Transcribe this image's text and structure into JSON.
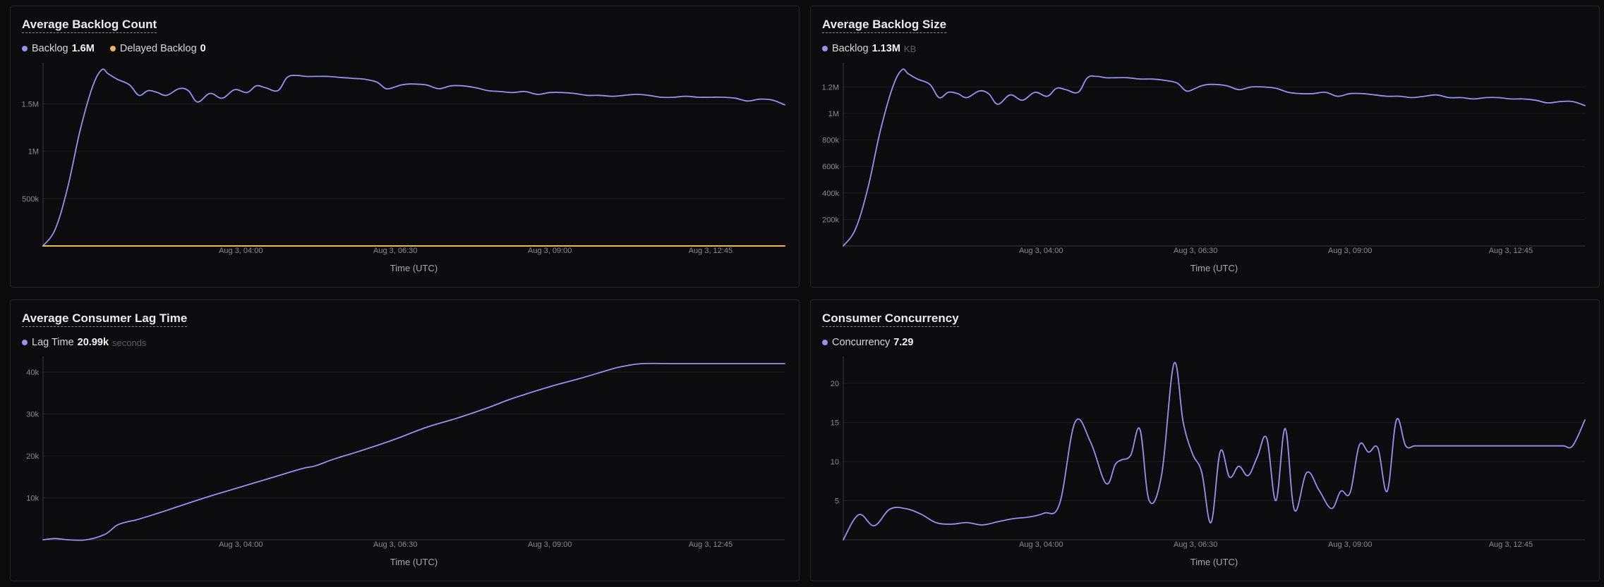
{
  "colors": {
    "primary": "#9d8ff0",
    "secondary": "#f5b35a",
    "grid": "#1d1d22",
    "axis": "#3a3a40"
  },
  "panels": [
    {
      "title": "Average Backlog Count",
      "legend": [
        {
          "name": "Backlog",
          "value": "1.6M",
          "unit": "",
          "color": "#9d8ff0"
        },
        {
          "name": "Delayed Backlog",
          "value": "0",
          "unit": "",
          "color": "#f5b35a"
        }
      ]
    },
    {
      "title": "Average Backlog Size",
      "legend": [
        {
          "name": "Backlog",
          "value": "1.13M",
          "unit": "KB",
          "color": "#9d8ff0"
        }
      ]
    },
    {
      "title": "Average Consumer Lag Time",
      "legend": [
        {
          "name": "Lag Time",
          "value": "20.99k",
          "unit": "seconds",
          "color": "#9d8ff0"
        }
      ]
    },
    {
      "title": "Consumer Concurrency",
      "legend": [
        {
          "name": "Concurrency",
          "value": "7.29",
          "unit": "",
          "color": "#9d8ff0"
        }
      ]
    }
  ],
  "chart_data": [
    {
      "type": "line",
      "title": "Average Backlog Count",
      "xlabel": "Time (UTC)",
      "x_ticks": [
        "Aug 3, 04:00",
        "Aug 3, 06:30",
        "Aug 3, 09:00",
        "Aug 3, 12:45"
      ],
      "x_tick_hours": [
        4.0,
        6.5,
        9.0,
        11.6
      ],
      "x_range_hours": [
        0.8,
        12.8
      ],
      "y_ticks": [
        500000,
        1000000,
        1500000
      ],
      "y_tick_labels": [
        "500k",
        "1M",
        "1.5M"
      ],
      "ylim": [
        0,
        1860000
      ],
      "series": [
        {
          "name": "Backlog",
          "color": "#9d8ff0",
          "x": [
            0.8,
            1.0,
            1.2,
            1.4,
            1.6,
            1.75,
            1.85,
            2.0,
            2.2,
            2.35,
            2.5,
            2.65,
            2.8,
            3.0,
            3.15,
            3.3,
            3.5,
            3.7,
            3.9,
            4.1,
            4.25,
            4.4,
            4.6,
            4.75,
            4.9,
            5.05,
            5.2,
            5.4,
            5.6,
            5.8,
            6.0,
            6.2,
            6.35,
            6.5,
            6.6,
            6.75,
            7.0,
            7.2,
            7.4,
            7.6,
            7.8,
            8.0,
            8.2,
            8.4,
            8.6,
            8.8,
            9.0,
            9.2,
            9.4,
            9.6,
            9.8,
            10.0,
            10.2,
            10.4,
            10.6,
            10.8,
            11.0,
            11.2,
            11.4,
            11.6,
            11.8,
            12.0,
            12.2,
            12.4,
            12.6,
            12.8
          ],
          "values": [
            0,
            180000,
            620000,
            1220000,
            1680000,
            1860000,
            1820000,
            1760000,
            1700000,
            1590000,
            1640000,
            1620000,
            1590000,
            1660000,
            1640000,
            1520000,
            1610000,
            1560000,
            1650000,
            1620000,
            1690000,
            1670000,
            1640000,
            1780000,
            1800000,
            1790000,
            1790000,
            1790000,
            1780000,
            1770000,
            1760000,
            1730000,
            1660000,
            1680000,
            1700000,
            1710000,
            1700000,
            1660000,
            1690000,
            1690000,
            1670000,
            1640000,
            1630000,
            1620000,
            1630000,
            1600000,
            1620000,
            1620000,
            1610000,
            1590000,
            1590000,
            1580000,
            1590000,
            1600000,
            1590000,
            1570000,
            1570000,
            1580000,
            1570000,
            1570000,
            1570000,
            1560000,
            1530000,
            1550000,
            1540000,
            1490000
          ]
        },
        {
          "name": "Delayed Backlog",
          "color": "#f5b35a",
          "x": [
            0.8,
            12.8
          ],
          "values": [
            0,
            0
          ]
        }
      ]
    },
    {
      "type": "line",
      "title": "Average Backlog Size",
      "xlabel": "Time (UTC)",
      "x_ticks": [
        "Aug 3, 04:00",
        "Aug 3, 06:30",
        "Aug 3, 09:00",
        "Aug 3, 12:45"
      ],
      "x_tick_hours": [
        4.0,
        6.5,
        9.0,
        11.6
      ],
      "x_range_hours": [
        0.8,
        12.8
      ],
      "y_ticks": [
        200000,
        400000,
        600000,
        800000,
        1000000,
        1200000
      ],
      "y_tick_labels": [
        "200k",
        "400k",
        "600k",
        "800k",
        "1M",
        "1.2M"
      ],
      "ylim": [
        0,
        1330000
      ],
      "series": [
        {
          "name": "Backlog",
          "unit": "KB",
          "color": "#9d8ff0",
          "x": [
            0.8,
            1.0,
            1.2,
            1.4,
            1.6,
            1.75,
            1.85,
            2.0,
            2.2,
            2.35,
            2.5,
            2.65,
            2.8,
            3.0,
            3.15,
            3.3,
            3.5,
            3.7,
            3.9,
            4.1,
            4.25,
            4.4,
            4.6,
            4.75,
            4.9,
            5.05,
            5.2,
            5.4,
            5.6,
            5.8,
            6.0,
            6.2,
            6.35,
            6.5,
            6.6,
            6.75,
            7.0,
            7.2,
            7.4,
            7.6,
            7.8,
            8.0,
            8.2,
            8.4,
            8.6,
            8.8,
            9.0,
            9.2,
            9.4,
            9.6,
            9.8,
            10.0,
            10.2,
            10.4,
            10.6,
            10.8,
            11.0,
            11.2,
            11.4,
            11.6,
            11.8,
            12.0,
            12.2,
            12.4,
            12.6,
            12.8
          ],
          "values": [
            0,
            130000,
            440000,
            870000,
            1200000,
            1330000,
            1300000,
            1260000,
            1220000,
            1120000,
            1160000,
            1150000,
            1120000,
            1170000,
            1150000,
            1070000,
            1140000,
            1100000,
            1160000,
            1130000,
            1190000,
            1180000,
            1160000,
            1270000,
            1280000,
            1270000,
            1270000,
            1270000,
            1260000,
            1260000,
            1250000,
            1230000,
            1170000,
            1190000,
            1210000,
            1220000,
            1210000,
            1180000,
            1200000,
            1200000,
            1190000,
            1160000,
            1150000,
            1150000,
            1160000,
            1130000,
            1150000,
            1150000,
            1140000,
            1130000,
            1130000,
            1120000,
            1130000,
            1140000,
            1120000,
            1120000,
            1110000,
            1120000,
            1120000,
            1110000,
            1110000,
            1100000,
            1080000,
            1090000,
            1090000,
            1060000
          ]
        }
      ]
    },
    {
      "type": "line",
      "title": "Average Consumer Lag Time",
      "xlabel": "Time (UTC)",
      "x_ticks": [
        "Aug 3, 04:00",
        "Aug 3, 06:30",
        "Aug 3, 09:00",
        "Aug 3, 12:45"
      ],
      "x_tick_hours": [
        4.0,
        6.5,
        9.0,
        11.6
      ],
      "x_range_hours": [
        0.8,
        12.8
      ],
      "y_ticks": [
        10000,
        20000,
        30000,
        40000
      ],
      "y_tick_labels": [
        "10k",
        "20k",
        "30k",
        "40k"
      ],
      "ylim": [
        0,
        42000
      ],
      "series": [
        {
          "name": "Lag Time",
          "unit": "seconds",
          "color": "#9d8ff0",
          "x": [
            0.8,
            1.0,
            1.2,
            1.5,
            1.8,
            2.0,
            2.2,
            2.3,
            2.5,
            2.8,
            3.0,
            3.5,
            4.0,
            4.5,
            5.0,
            5.2,
            5.5,
            6.0,
            6.5,
            7.0,
            7.5,
            8.0,
            8.3,
            8.5,
            9.0,
            9.5,
            10.0,
            10.2,
            10.5,
            11.0,
            11.5,
            12.0,
            12.4,
            12.8
          ],
          "values": [
            0,
            300,
            0,
            0,
            1300,
            3500,
            4400,
            4700,
            5600,
            7000,
            8000,
            10400,
            12600,
            14800,
            17000,
            17600,
            19200,
            21500,
            24000,
            26800,
            29000,
            31500,
            33200,
            34200,
            36500,
            38500,
            40700,
            41400,
            42000,
            42000,
            42000,
            42000,
            42000,
            42000
          ]
        }
      ]
    },
    {
      "type": "line",
      "title": "Consumer Concurrency",
      "xlabel": "Time (UTC)",
      "x_ticks": [
        "Aug 3, 04:00",
        "Aug 3, 06:30",
        "Aug 3, 09:00",
        "Aug 3, 12:45"
      ],
      "x_tick_hours": [
        4.0,
        6.5,
        9.0,
        11.6
      ],
      "x_range_hours": [
        0.8,
        12.8
      ],
      "y_ticks": [
        5,
        10,
        15,
        20
      ],
      "y_tick_labels": [
        "5",
        "10",
        "15",
        "20"
      ],
      "ylim": [
        0,
        22.5
      ],
      "series": [
        {
          "name": "Concurrency",
          "color": "#9d8ff0",
          "x": [
            0.8,
            1.05,
            1.3,
            1.55,
            1.8,
            2.05,
            2.3,
            2.55,
            2.8,
            3.05,
            3.3,
            3.55,
            3.8,
            4.05,
            4.3,
            4.55,
            4.8,
            5.05,
            5.2,
            5.3,
            5.45,
            5.6,
            5.75,
            5.95,
            6.15,
            6.3,
            6.45,
            6.6,
            6.75,
            6.9,
            7.05,
            7.2,
            7.35,
            7.5,
            7.65,
            7.8,
            7.95,
            8.1,
            8.3,
            8.5,
            8.7,
            8.85,
            9.0,
            9.15,
            9.3,
            9.45,
            9.6,
            9.75,
            9.9,
            10.05,
            10.25,
            10.45,
            10.6,
            10.75,
            10.9,
            11.05,
            11.25,
            11.45,
            11.65,
            11.85,
            12.05,
            12.25,
            12.45,
            12.6,
            12.8
          ],
          "values": [
            0,
            3.2,
            1.8,
            3.9,
            4.0,
            3.3,
            2.2,
            2.0,
            2.2,
            1.9,
            2.3,
            2.7,
            2.9,
            3.4,
            4.6,
            15.0,
            12.5,
            7.2,
            9.6,
            10.2,
            10.8,
            14.1,
            5.0,
            8.3,
            22.5,
            15.0,
            11.0,
            8.6,
            2.2,
            11.3,
            8.0,
            9.4,
            8.2,
            10.6,
            13.0,
            5.0,
            14.2,
            3.8,
            8.6,
            6.3,
            4.0,
            6.2,
            6.0,
            12.1,
            11.2,
            11.7,
            6.2,
            15.3,
            12.0,
            12.0,
            12.0,
            12.0,
            12.0,
            12.0,
            12.0,
            12.0,
            12.0,
            12.0,
            12.0,
            12.0,
            12.0,
            12.0,
            12.0,
            12.0,
            15.3
          ]
        }
      ]
    }
  ]
}
